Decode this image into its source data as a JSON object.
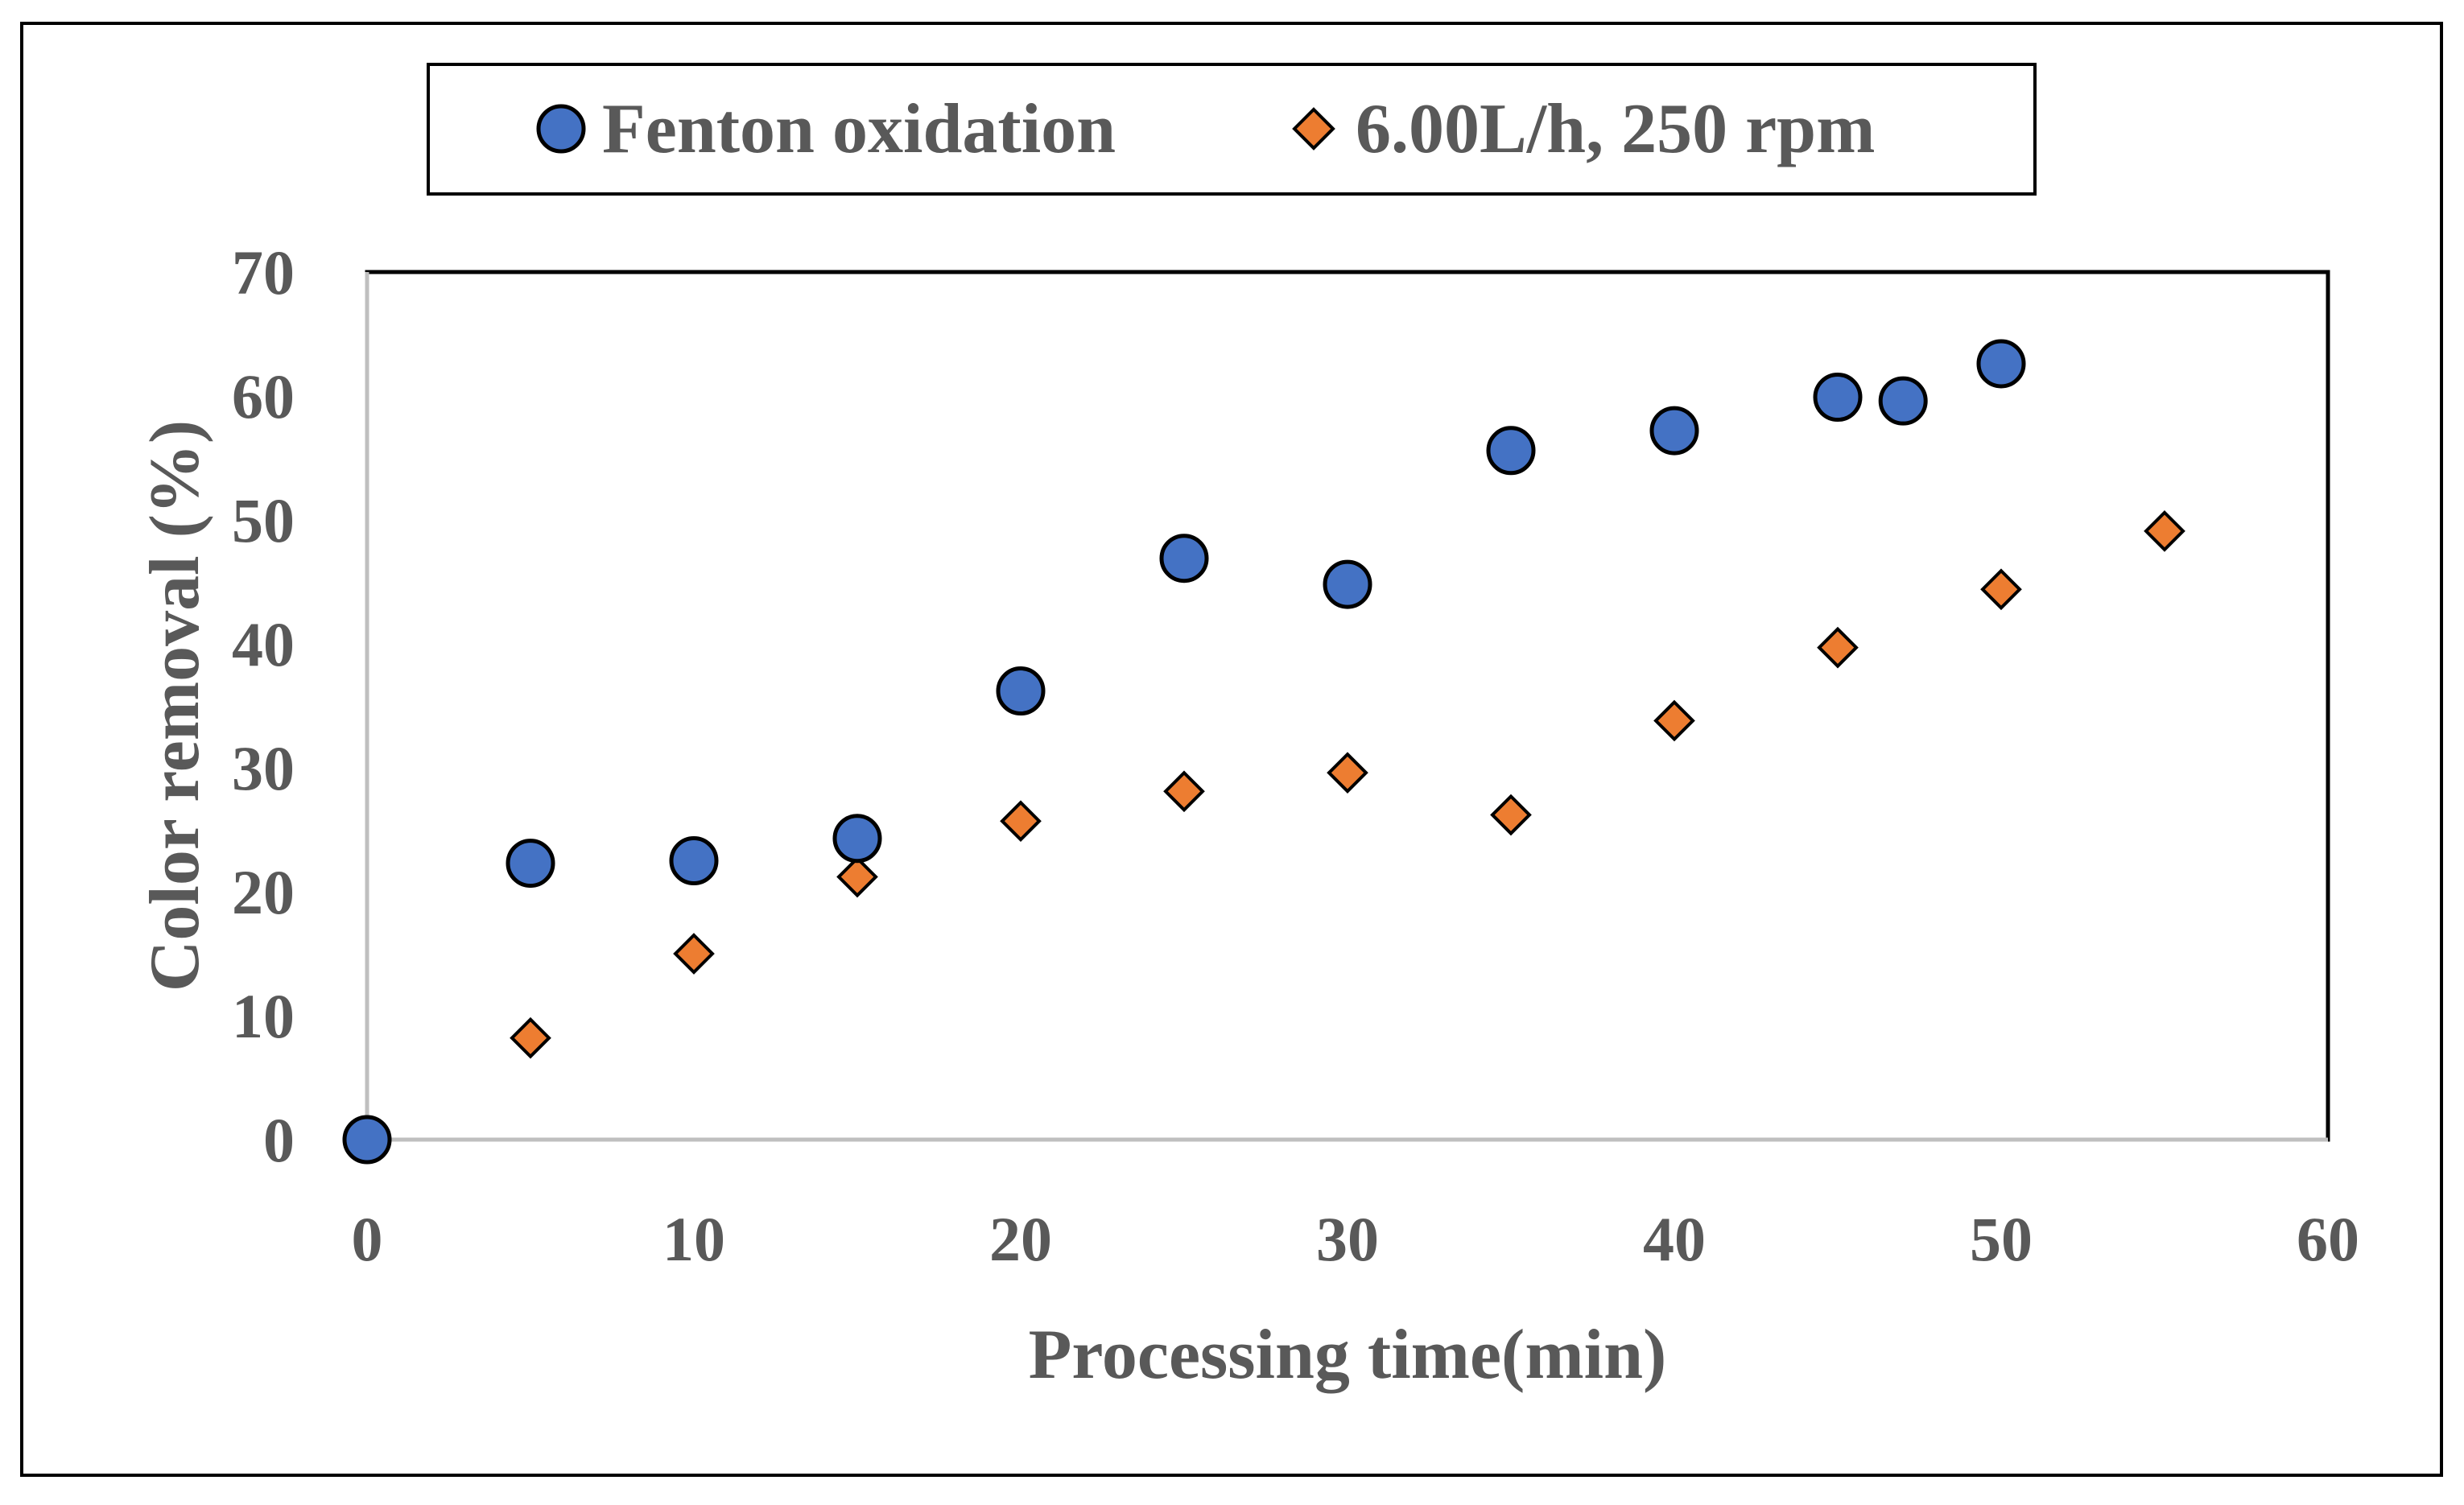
{
  "chart_data": {
    "type": "scatter",
    "title": "",
    "xlabel": "Processing time(min)",
    "ylabel": "Color removal (%)",
    "xlim": [
      0,
      60
    ],
    "ylim": [
      0,
      70
    ],
    "x_ticks": [
      0,
      10,
      20,
      30,
      40,
      50,
      60
    ],
    "y_ticks": [
      0,
      10,
      20,
      30,
      40,
      50,
      60,
      70
    ],
    "x_tick_labels": [
      "0",
      "10",
      "20",
      "30",
      "40",
      "50",
      "60"
    ],
    "y_tick_labels": [
      "0",
      "10",
      "20",
      "30",
      "40",
      "50",
      "60",
      "70"
    ],
    "grid": false,
    "legend_position": "top",
    "series": [
      {
        "name": "Fenton oxidation",
        "marker": "circle",
        "color": "#4472C4",
        "x": [
          0,
          5,
          10,
          15,
          20,
          25,
          30,
          35,
          40,
          45,
          47,
          50
        ],
        "y": [
          0,
          22.3,
          22.5,
          24.3,
          36.2,
          46.9,
          44.8,
          55.6,
          57.2,
          59.9,
          59.6,
          62.6
        ]
      },
      {
        "name": "6.00L/h, 250 rpm",
        "marker": "diamond",
        "color": "#ED7D31",
        "x": [
          0,
          5,
          10,
          15,
          20,
          25,
          30,
          35,
          40,
          45,
          50,
          55
        ],
        "y": [
          0,
          8.2,
          15.0,
          21.2,
          25.7,
          28.1,
          29.6,
          26.2,
          33.8,
          39.7,
          44.4,
          49.1
        ]
      }
    ]
  }
}
